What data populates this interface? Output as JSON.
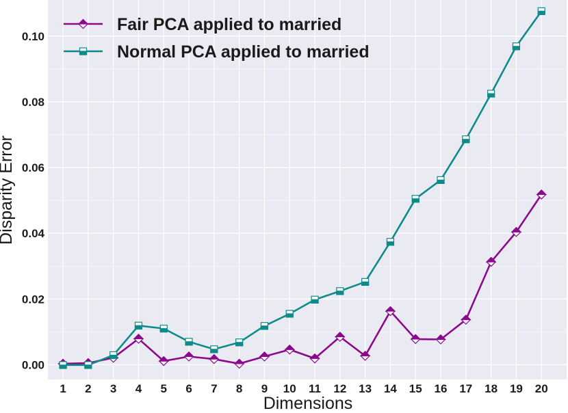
{
  "colors": {
    "fair": "#8b0a8b",
    "normal": "#0e8a8a",
    "plot_bg": "#eaeaf2",
    "grid": "#ffffff"
  },
  "chart_data": {
    "type": "line",
    "title": "",
    "xlabel": "Dimensions",
    "ylabel": "Disparity Error",
    "x": [
      1,
      2,
      3,
      4,
      5,
      6,
      7,
      8,
      9,
      10,
      11,
      12,
      13,
      14,
      15,
      16,
      17,
      18,
      19,
      20
    ],
    "xticks": [
      "1",
      "2",
      "3",
      "4",
      "5",
      "6",
      "7",
      "8",
      "9",
      "10",
      "11",
      "12",
      "13",
      "14",
      "15",
      "16",
      "17",
      "18",
      "19",
      "20"
    ],
    "yticks": [
      "0.00",
      "0.02",
      "0.04",
      "0.06",
      "0.08",
      "0.10"
    ],
    "ylim": [
      -0.0045,
      0.111
    ],
    "xlim": [
      0.4,
      21.0
    ],
    "grid": true,
    "legend_position": "upper-left",
    "series": [
      {
        "name": "Fair PCA applied to married",
        "marker": "diamond",
        "color_key": "fair",
        "values": [
          0.0003,
          0.0005,
          0.0021,
          0.0079,
          0.0011,
          0.0025,
          0.0017,
          0.0003,
          0.0025,
          0.0046,
          0.0019,
          0.0085,
          0.0027,
          0.0163,
          0.0078,
          0.0077,
          0.0137,
          0.0313,
          0.0404,
          0.0518
        ]
      },
      {
        "name": "Normal PCA applied to married",
        "marker": "square",
        "color_key": "normal",
        "values": [
          -0.0001,
          -0.0001,
          0.0029,
          0.0119,
          0.011,
          0.007,
          0.0047,
          0.0068,
          0.0118,
          0.0155,
          0.0198,
          0.0224,
          0.0252,
          0.0374,
          0.0505,
          0.0562,
          0.0686,
          0.0825,
          0.0969,
          0.1076
        ]
      }
    ]
  }
}
